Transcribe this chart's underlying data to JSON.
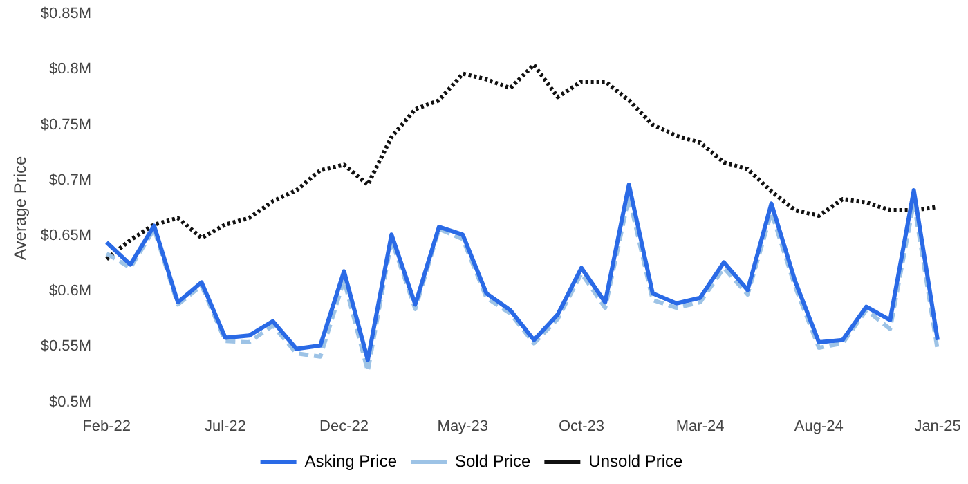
{
  "chart_data": {
    "type": "line",
    "ylabel": "Average Price",
    "categories": [
      "Feb-22",
      null,
      null,
      null,
      null,
      "Jul-22",
      null,
      null,
      null,
      null,
      "Dec-22",
      null,
      null,
      null,
      null,
      "May-23",
      null,
      null,
      null,
      null,
      "Oct-23",
      null,
      null,
      null,
      null,
      "Mar-24",
      null,
      null,
      null,
      null,
      "Aug-24",
      null,
      null,
      null,
      null,
      "Jan-25"
    ],
    "ylim": [
      0.5,
      0.85
    ],
    "yticks": [
      {
        "value": 0.5,
        "label": "$0.5M"
      },
      {
        "value": 0.55,
        "label": "$0.55M"
      },
      {
        "value": 0.6,
        "label": "$0.6M"
      },
      {
        "value": 0.65,
        "label": "$0.65M"
      },
      {
        "value": 0.7,
        "label": "$0.7M"
      },
      {
        "value": 0.75,
        "label": "$0.75M"
      },
      {
        "value": 0.8,
        "label": "$0.8M"
      },
      {
        "value": 0.85,
        "label": "$0.85M"
      }
    ],
    "grid": false,
    "legend": "bottom",
    "marker": "none",
    "series": [
      {
        "name": "Asking Price",
        "color": "#2a6ae6",
        "line_style": "solid",
        "values": [
          0.644,
          0.624,
          0.659,
          0.59,
          0.608,
          0.558,
          0.56,
          0.573,
          0.548,
          0.551,
          0.618,
          0.538,
          0.651,
          0.588,
          0.658,
          0.651,
          0.598,
          0.583,
          0.556,
          0.579,
          0.621,
          0.59,
          0.696,
          0.598,
          0.589,
          0.594,
          0.626,
          0.601,
          0.679,
          0.609,
          0.554,
          0.556,
          0.586,
          0.574,
          0.691,
          0.556
        ]
      },
      {
        "name": "Sold Price",
        "color": "#9dc3e6",
        "line_style": "dashed",
        "values": [
          0.634,
          0.621,
          0.656,
          0.588,
          0.605,
          0.555,
          0.554,
          0.569,
          0.544,
          0.541,
          0.61,
          0.528,
          0.646,
          0.584,
          0.656,
          0.647,
          0.594,
          0.58,
          0.553,
          0.575,
          0.616,
          0.585,
          0.685,
          0.592,
          0.585,
          0.59,
          0.621,
          0.597,
          0.671,
          0.604,
          0.549,
          0.553,
          0.583,
          0.566,
          0.68,
          0.547
        ]
      },
      {
        "name": "Unsold Price",
        "color": "#111111",
        "line_style": "dotted",
        "values": [
          0.629,
          0.646,
          0.66,
          0.666,
          0.648,
          0.66,
          0.666,
          0.681,
          0.691,
          0.709,
          0.714,
          0.696,
          0.739,
          0.764,
          0.772,
          0.796,
          0.791,
          0.783,
          0.804,
          0.775,
          0.789,
          0.789,
          0.772,
          0.75,
          0.74,
          0.734,
          0.716,
          0.71,
          0.69,
          0.673,
          0.668,
          0.683,
          0.68,
          0.673,
          0.673,
          0.676
        ]
      }
    ]
  }
}
